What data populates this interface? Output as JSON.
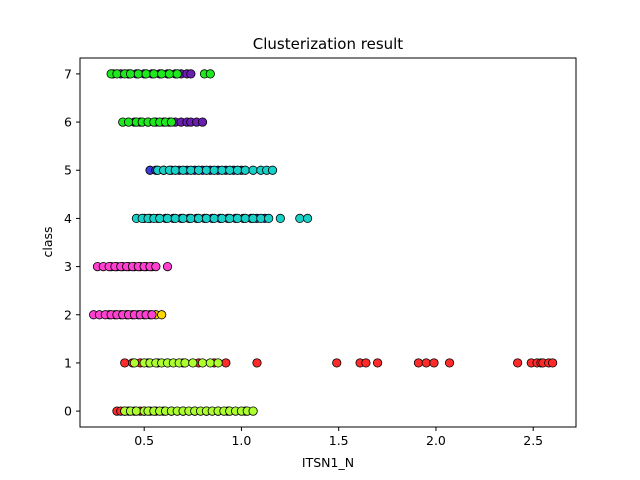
{
  "chart_data": {
    "type": "scatter",
    "title": "Clusterization result",
    "xlabel": "ITSN1_N",
    "ylabel": "class",
    "xlim": [
      0.17,
      2.72
    ],
    "ylim": [
      -0.33,
      7.33
    ],
    "xticks": [
      0.5,
      1.0,
      1.5,
      2.0,
      2.5
    ],
    "xtick_labels": [
      "0.5",
      "1.0",
      "1.5",
      "2.0",
      "2.5"
    ],
    "yticks": [
      0,
      1,
      2,
      3,
      4,
      5,
      6,
      7
    ],
    "ytick_labels": [
      "0",
      "1",
      "2",
      "3",
      "4",
      "5",
      "6",
      "7"
    ],
    "grid": false,
    "legend": false,
    "marker_edge_color": "#000000",
    "series": [
      {
        "color": "#ff2b2b",
        "points": [
          [
            0.36,
            0
          ],
          [
            0.38,
            0
          ],
          [
            0.4,
            0
          ],
          [
            0.42,
            0
          ],
          [
            0.45,
            0
          ],
          [
            0.48,
            0
          ],
          [
            0.5,
            0
          ],
          [
            0.53,
            0
          ],
          [
            0.56,
            0
          ],
          [
            0.6,
            0
          ],
          [
            0.64,
            0
          ],
          [
            0.7,
            0
          ],
          [
            0.76,
            0
          ],
          [
            0.82,
            0
          ],
          [
            0.88,
            0
          ],
          [
            0.93,
            0
          ],
          [
            1.02,
            0
          ],
          [
            0.4,
            1
          ],
          [
            0.44,
            1
          ],
          [
            0.48,
            1
          ],
          [
            0.52,
            1
          ],
          [
            0.57,
            1
          ],
          [
            0.62,
            1
          ],
          [
            0.7,
            1
          ],
          [
            0.78,
            1
          ],
          [
            0.86,
            1
          ],
          [
            0.92,
            1
          ],
          [
            1.08,
            1
          ],
          [
            1.49,
            1
          ],
          [
            1.61,
            1
          ],
          [
            1.64,
            1
          ],
          [
            1.7,
            1
          ],
          [
            1.91,
            1
          ],
          [
            1.95,
            1
          ],
          [
            1.99,
            1
          ],
          [
            2.07,
            1
          ],
          [
            2.42,
            1
          ],
          [
            2.49,
            1
          ],
          [
            2.52,
            1
          ],
          [
            2.54,
            1
          ],
          [
            2.55,
            1
          ],
          [
            2.58,
            1
          ],
          [
            2.6,
            1
          ]
        ]
      },
      {
        "color": "#adff2f",
        "points": [
          [
            0.4,
            0
          ],
          [
            0.43,
            0
          ],
          [
            0.46,
            0
          ],
          [
            0.5,
            0
          ],
          [
            0.52,
            0
          ],
          [
            0.55,
            0
          ],
          [
            0.58,
            0
          ],
          [
            0.61,
            0
          ],
          [
            0.64,
            0
          ],
          [
            0.67,
            0
          ],
          [
            0.7,
            0
          ],
          [
            0.73,
            0
          ],
          [
            0.76,
            0
          ],
          [
            0.79,
            0
          ],
          [
            0.82,
            0
          ],
          [
            0.85,
            0
          ],
          [
            0.88,
            0
          ],
          [
            0.91,
            0
          ],
          [
            0.94,
            0
          ],
          [
            0.97,
            0
          ],
          [
            1.0,
            0
          ],
          [
            1.03,
            0
          ],
          [
            1.06,
            0
          ],
          [
            0.45,
            1
          ],
          [
            0.5,
            1
          ],
          [
            0.53,
            1
          ],
          [
            0.56,
            1
          ],
          [
            0.59,
            1
          ],
          [
            0.62,
            1
          ],
          [
            0.65,
            1
          ],
          [
            0.68,
            1
          ],
          [
            0.71,
            1
          ],
          [
            0.75,
            1
          ],
          [
            0.8,
            1
          ],
          [
            0.84,
            1
          ],
          [
            0.88,
            1
          ]
        ]
      },
      {
        "color": "#ffd700",
        "points": [
          [
            0.32,
            2
          ],
          [
            0.35,
            2
          ],
          [
            0.38,
            2
          ],
          [
            0.41,
            2
          ],
          [
            0.44,
            2
          ],
          [
            0.47,
            2
          ],
          [
            0.5,
            2
          ],
          [
            0.53,
            2
          ],
          [
            0.56,
            2
          ],
          [
            0.59,
            2
          ],
          [
            0.33,
            3
          ],
          [
            0.36,
            3
          ],
          [
            0.39,
            3
          ],
          [
            0.42,
            3
          ],
          [
            0.45,
            3
          ],
          [
            0.48,
            3
          ],
          [
            0.51,
            3
          ],
          [
            0.54,
            3
          ]
        ]
      },
      {
        "color": "#ff40d0",
        "points": [
          [
            0.24,
            2
          ],
          [
            0.27,
            2
          ],
          [
            0.3,
            2
          ],
          [
            0.33,
            2
          ],
          [
            0.36,
            2
          ],
          [
            0.39,
            2
          ],
          [
            0.42,
            2
          ],
          [
            0.45,
            2
          ],
          [
            0.48,
            2
          ],
          [
            0.51,
            2
          ],
          [
            0.54,
            2
          ],
          [
            0.26,
            3
          ],
          [
            0.29,
            3
          ],
          [
            0.32,
            3
          ],
          [
            0.35,
            3
          ],
          [
            0.38,
            3
          ],
          [
            0.41,
            3
          ],
          [
            0.44,
            3
          ],
          [
            0.47,
            3
          ],
          [
            0.5,
            3
          ],
          [
            0.53,
            3
          ],
          [
            0.56,
            3
          ],
          [
            0.62,
            3
          ]
        ]
      },
      {
        "color": "#3a3ad8",
        "points": [
          [
            0.5,
            4
          ],
          [
            0.53,
            4
          ],
          [
            0.57,
            4
          ],
          [
            0.61,
            4
          ],
          [
            0.65,
            4
          ],
          [
            0.69,
            4
          ],
          [
            0.73,
            4
          ],
          [
            0.77,
            4
          ],
          [
            0.81,
            4
          ],
          [
            0.85,
            4
          ],
          [
            0.89,
            4
          ],
          [
            0.93,
            4
          ],
          [
            0.97,
            4
          ],
          [
            1.01,
            4
          ],
          [
            1.05,
            4
          ],
          [
            1.08,
            4
          ],
          [
            1.12,
            4
          ],
          [
            0.53,
            5
          ],
          [
            0.56,
            5
          ],
          [
            0.6,
            5
          ],
          [
            0.64,
            5
          ],
          [
            0.68,
            5
          ],
          [
            0.72,
            5
          ],
          [
            0.76,
            5
          ],
          [
            0.8,
            5
          ],
          [
            0.84,
            5
          ],
          [
            0.88,
            5
          ],
          [
            0.92,
            5
          ],
          [
            0.96,
            5
          ],
          [
            1.0,
            5
          ]
        ]
      },
      {
        "color": "#17d0c8",
        "points": [
          [
            0.46,
            4
          ],
          [
            0.49,
            4
          ],
          [
            0.52,
            4
          ],
          [
            0.55,
            4
          ],
          [
            0.58,
            4
          ],
          [
            0.62,
            4
          ],
          [
            0.66,
            4
          ],
          [
            0.7,
            4
          ],
          [
            0.74,
            4
          ],
          [
            0.78,
            4
          ],
          [
            0.82,
            4
          ],
          [
            0.86,
            4
          ],
          [
            0.9,
            4
          ],
          [
            0.94,
            4
          ],
          [
            0.98,
            4
          ],
          [
            1.02,
            4
          ],
          [
            1.06,
            4
          ],
          [
            1.1,
            4
          ],
          [
            1.14,
            4
          ],
          [
            1.2,
            4
          ],
          [
            1.3,
            4
          ],
          [
            1.34,
            4
          ],
          [
            0.57,
            5
          ],
          [
            0.6,
            5
          ],
          [
            0.63,
            5
          ],
          [
            0.66,
            5
          ],
          [
            0.7,
            5
          ],
          [
            0.74,
            5
          ],
          [
            0.78,
            5
          ],
          [
            0.82,
            5
          ],
          [
            0.86,
            5
          ],
          [
            0.9,
            5
          ],
          [
            0.94,
            5
          ],
          [
            0.98,
            5
          ],
          [
            1.02,
            5
          ],
          [
            1.06,
            5
          ],
          [
            1.1,
            5
          ],
          [
            1.13,
            5
          ],
          [
            1.16,
            5
          ]
        ]
      },
      {
        "color": "#6a1fb0",
        "points": [
          [
            0.45,
            6
          ],
          [
            0.48,
            6
          ],
          [
            0.52,
            6
          ],
          [
            0.56,
            6
          ],
          [
            0.6,
            6
          ],
          [
            0.63,
            6
          ],
          [
            0.66,
            6
          ],
          [
            0.69,
            6
          ],
          [
            0.72,
            6
          ],
          [
            0.74,
            6
          ],
          [
            0.77,
            6
          ],
          [
            0.8,
            6
          ],
          [
            0.34,
            7
          ],
          [
            0.38,
            7
          ],
          [
            0.42,
            7
          ],
          [
            0.46,
            7
          ],
          [
            0.5,
            7
          ],
          [
            0.54,
            7
          ],
          [
            0.58,
            7
          ],
          [
            0.62,
            7
          ],
          [
            0.66,
            7
          ],
          [
            0.69,
            7
          ],
          [
            0.72,
            7
          ],
          [
            0.74,
            7
          ]
        ]
      },
      {
        "color": "#1ee81e",
        "points": [
          [
            0.39,
            6
          ],
          [
            0.42,
            6
          ],
          [
            0.46,
            6
          ],
          [
            0.49,
            6
          ],
          [
            0.52,
            6
          ],
          [
            0.55,
            6
          ],
          [
            0.58,
            6
          ],
          [
            0.61,
            6
          ],
          [
            0.64,
            6
          ],
          [
            0.33,
            7
          ],
          [
            0.36,
            7
          ],
          [
            0.4,
            7
          ],
          [
            0.43,
            7
          ],
          [
            0.47,
            7
          ],
          [
            0.51,
            7
          ],
          [
            0.55,
            7
          ],
          [
            0.59,
            7
          ],
          [
            0.63,
            7
          ],
          [
            0.67,
            7
          ],
          [
            0.81,
            7
          ],
          [
            0.84,
            7
          ]
        ]
      }
    ]
  }
}
